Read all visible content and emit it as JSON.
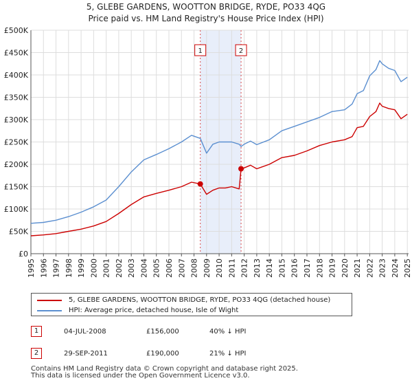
{
  "title_line1": "5, GLEBE GARDENS, WOOTTON BRIDGE, RYDE, PO33 4QG",
  "title_line2": "Price paid vs. HM Land Registry's House Price Index (HPI)",
  "colors": {
    "property": "#cc0000",
    "hpi": "#5b8fd0",
    "shade": "#e8eefa",
    "grid": "#dddddd"
  },
  "chart_data": {
    "type": "line",
    "title": "5, GLEBE GARDENS, WOOTTON BRIDGE, RYDE, PO33 4QG — Price paid vs. HM Land Registry's House Price Index (HPI)",
    "xlabel": "",
    "ylabel": "",
    "xlim": [
      1995,
      2025.1
    ],
    "ylim": [
      0,
      500000
    ],
    "y_ticks": [
      0,
      50000,
      100000,
      150000,
      200000,
      250000,
      300000,
      350000,
      400000,
      450000,
      500000
    ],
    "y_tick_labels": [
      "£0",
      "£50K",
      "£100K",
      "£150K",
      "£200K",
      "£250K",
      "£300K",
      "£350K",
      "£400K",
      "£450K",
      "£500K"
    ],
    "x_ticks": [
      1995,
      1996,
      1997,
      1998,
      1999,
      2000,
      2001,
      2002,
      2003,
      2004,
      2005,
      2006,
      2007,
      2008,
      2009,
      2010,
      2011,
      2012,
      2013,
      2014,
      2015,
      2016,
      2017,
      2018,
      2019,
      2020,
      2021,
      2022,
      2023,
      2024,
      2025
    ],
    "x_tick_labels": [
      "1995",
      "1996",
      "1997",
      "1998",
      "1999",
      "2000",
      "2001",
      "2002",
      "2003",
      "2004",
      "2005",
      "2006",
      "2007",
      "2008",
      "2009",
      "2010",
      "2011",
      "2012",
      "2013",
      "2014",
      "2015",
      "2016",
      "2017",
      "2018",
      "2019",
      "2020",
      "2021",
      "2022",
      "2023",
      "2024",
      "2025"
    ],
    "grid": true,
    "shaded_period": [
      2008.5,
      2011.75
    ],
    "series": [
      {
        "name": "5, GLEBE GARDENS, WOOTTON BRIDGE, RYDE, PO33 4QG (detached house)",
        "x": [
          1995.0,
          1996.0,
          1997.0,
          1998.0,
          1999.0,
          2000.0,
          2001.0,
          2002.0,
          2003.0,
          2004.0,
          2005.0,
          2006.0,
          2007.0,
          2007.8,
          2008.5,
          2009.0,
          2009.5,
          2010.0,
          2010.5,
          2011.0,
          2011.6,
          2011.75,
          2012.0,
          2012.5,
          2013.0,
          2014.0,
          2015.0,
          2016.0,
          2017.0,
          2018.0,
          2019.0,
          2020.0,
          2020.6,
          2021.0,
          2021.5,
          2022.0,
          2022.5,
          2022.8,
          2023.0,
          2023.5,
          2024.0,
          2024.5,
          2025.0
        ],
        "y": [
          40000,
          42000,
          45000,
          50000,
          55000,
          62000,
          72000,
          90000,
          110000,
          127000,
          135000,
          142000,
          150000,
          160000,
          156000,
          133000,
          142000,
          147000,
          147000,
          150000,
          145000,
          190000,
          192000,
          198000,
          190000,
          200000,
          215000,
          220000,
          230000,
          242000,
          250000,
          255000,
          262000,
          282000,
          285000,
          307000,
          318000,
          337000,
          330000,
          325000,
          322000,
          302000,
          312000
        ]
      },
      {
        "name": "HPI: Average price, detached house, Isle of Wight",
        "x": [
          1995.0,
          1996.0,
          1997.0,
          1998.0,
          1999.0,
          2000.0,
          2001.0,
          2002.0,
          2003.0,
          2004.0,
          2005.0,
          2006.0,
          2007.0,
          2007.8,
          2008.5,
          2009.0,
          2009.5,
          2010.0,
          2010.5,
          2011.0,
          2011.6,
          2011.75,
          2012.0,
          2012.5,
          2013.0,
          2014.0,
          2015.0,
          2016.0,
          2017.0,
          2018.0,
          2019.0,
          2020.0,
          2020.6,
          2021.0,
          2021.5,
          2022.0,
          2022.5,
          2022.8,
          2023.0,
          2023.5,
          2024.0,
          2024.5,
          2025.0
        ],
        "y": [
          68000,
          70000,
          75000,
          83000,
          93000,
          105000,
          120000,
          150000,
          183000,
          210000,
          222000,
          235000,
          250000,
          265000,
          258000,
          225000,
          245000,
          250000,
          250000,
          250000,
          245000,
          240000,
          245000,
          252000,
          244000,
          255000,
          275000,
          285000,
          295000,
          305000,
          318000,
          322000,
          335000,
          358000,
          365000,
          398000,
          412000,
          432000,
          425000,
          415000,
          410000,
          385000,
          395000
        ]
      }
    ],
    "sale_markers": [
      {
        "label": "1",
        "x": 2008.5,
        "y": 156000
      },
      {
        "label": "2",
        "x": 2011.75,
        "y": 190000
      }
    ]
  },
  "legend": {
    "property_label": "5, GLEBE GARDENS, WOOTTON BRIDGE, RYDE, PO33 4QG (detached house)",
    "hpi_label": "HPI: Average price, detached house, Isle of Wight"
  },
  "transactions": [
    {
      "num": "1",
      "date": "04-JUL-2008",
      "price": "£156,000",
      "hpi": "40% ↓ HPI"
    },
    {
      "num": "2",
      "date": "29-SEP-2011",
      "price": "£190,000",
      "hpi": "21% ↓ HPI"
    }
  ],
  "footer": {
    "line1": "Contains HM Land Registry data © Crown copyright and database right 2025.",
    "line2": "This data is licensed under the Open Government Licence v3.0."
  }
}
